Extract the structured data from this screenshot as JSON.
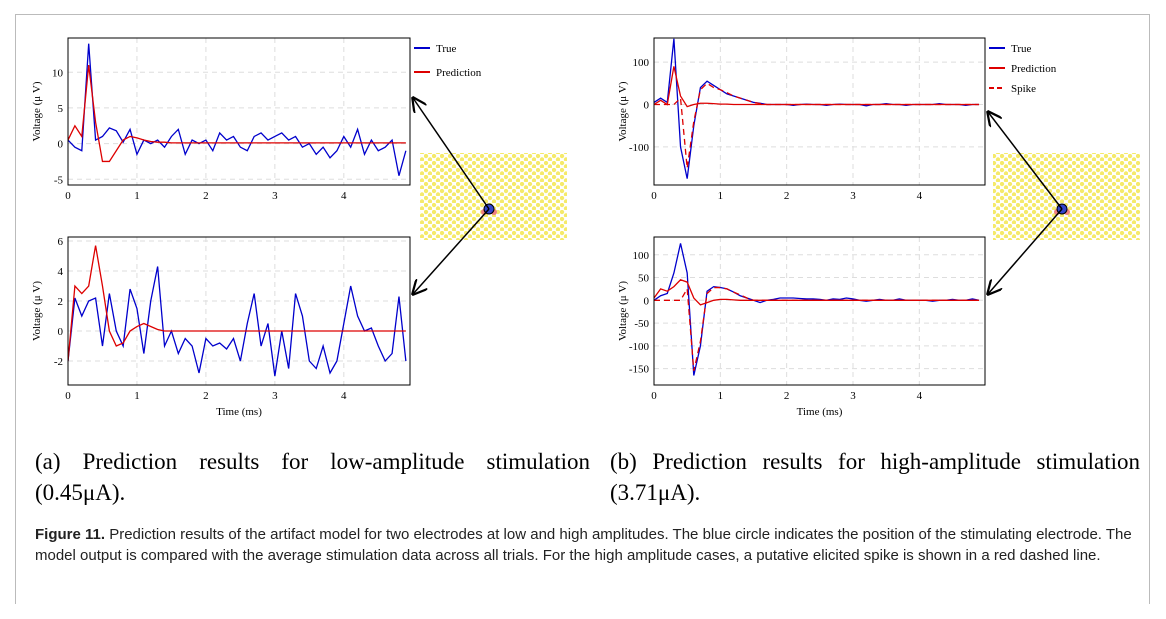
{
  "chart_data": [
    {
      "type": "line",
      "y_label": "Voltage (μ V)",
      "xlim": [
        0,
        4.96
      ],
      "ylim": [
        -5.8,
        14.8
      ],
      "xticks": [
        0,
        1,
        2,
        3,
        4
      ],
      "yticks": [
        -5,
        0,
        5,
        10
      ],
      "grid": true,
      "legend": "right",
      "x": [
        0,
        0.1,
        0.2,
        0.3,
        0.4,
        0.5,
        0.6,
        0.7,
        0.8,
        0.9,
        1,
        1.1,
        1.2,
        1.3,
        1.4,
        1.5,
        1.6,
        1.7,
        1.8,
        1.9,
        2,
        2.1,
        2.2,
        2.3,
        2.4,
        2.5,
        2.6,
        2.7,
        2.8,
        2.9,
        3,
        3.1,
        3.2,
        3.3,
        3.4,
        3.5,
        3.6,
        3.7,
        3.8,
        3.9,
        4,
        4.1,
        4.2,
        4.3,
        4.4,
        4.5,
        4.6,
        4.7,
        4.8,
        4.9
      ],
      "series": [
        {
          "name": "True",
          "color": "#0000cc",
          "values": [
            0.5,
            -0.5,
            -1,
            14,
            0.5,
            1,
            2.2,
            1.8,
            0.2,
            2,
            -1.5,
            0.5,
            0,
            0.5,
            -0.5,
            1,
            2,
            -1.5,
            0.5,
            0,
            0.5,
            -1,
            1.5,
            0.5,
            1,
            -0.5,
            -1,
            1,
            1.5,
            0.5,
            1,
            1.5,
            0.5,
            1,
            -0.5,
            0,
            -1.5,
            -0.5,
            -2,
            -1,
            1,
            -0.5,
            2,
            -1.5,
            0.5,
            -1,
            -0.5,
            0.5,
            -4.5,
            -1
          ]
        },
        {
          "name": "Prediction",
          "color": "#dd0000",
          "values": [
            0.5,
            2.5,
            1,
            11,
            3,
            -2.5,
            -2.5,
            -1,
            0.5,
            1,
            0.8,
            0.5,
            0.3,
            0.2,
            0.2,
            0.1,
            0.1,
            0.1,
            0.1,
            0.1,
            0.1,
            0.1,
            0.1,
            0.1,
            0.1,
            0.1,
            0.1,
            0.1,
            0.1,
            0.1,
            0.1,
            0.1,
            0.1,
            0.1,
            0.1,
            0.1,
            0.1,
            0.1,
            0.1,
            0.1,
            0.1,
            0.1,
            0.1,
            0.1,
            0.1,
            0.1,
            0.1,
            0.1,
            0.1,
            0.1
          ]
        }
      ]
    },
    {
      "type": "line",
      "x_label": "Time (ms)",
      "y_label": "Voltage (μ V)",
      "xlim": [
        0,
        4.96
      ],
      "ylim": [
        -3.6,
        6.27
      ],
      "xticks": [
        0,
        1,
        2,
        3,
        4
      ],
      "yticks": [
        -2,
        0,
        2,
        4,
        6
      ],
      "grid": true,
      "x": [
        0,
        0.1,
        0.2,
        0.3,
        0.4,
        0.5,
        0.6,
        0.7,
        0.8,
        0.9,
        1,
        1.1,
        1.2,
        1.3,
        1.4,
        1.5,
        1.6,
        1.7,
        1.8,
        1.9,
        2,
        2.1,
        2.2,
        2.3,
        2.4,
        2.5,
        2.6,
        2.7,
        2.8,
        2.9,
        3,
        3.1,
        3.2,
        3.3,
        3.4,
        3.5,
        3.6,
        3.7,
        3.8,
        3.9,
        4,
        4.1,
        4.2,
        4.3,
        4.4,
        4.5,
        4.6,
        4.7,
        4.8,
        4.9
      ],
      "series": [
        {
          "color": "#0000cc",
          "values": [
            -2,
            2.2,
            1,
            2,
            2.2,
            -1,
            2.5,
            0,
            -1,
            2.8,
            1.5,
            -1.5,
            2,
            4.3,
            -1,
            0,
            -1.5,
            -0.5,
            -1,
            -2.8,
            -0.5,
            -1,
            -0.8,
            -1.2,
            -0.5,
            -2,
            0.5,
            2.5,
            -1,
            0.5,
            -3,
            0,
            -2.5,
            2.5,
            1,
            -2,
            -2.5,
            -1,
            -2.8,
            -2,
            0.5,
            3,
            1,
            0,
            0.2,
            -1,
            -2,
            -1.5,
            2.3,
            -2
          ]
        },
        {
          "color": "#dd0000",
          "values": [
            -2,
            3,
            2.5,
            3,
            5.7,
            3,
            0,
            -1,
            -0.8,
            0,
            0.3,
            0.5,
            0.3,
            0.1,
            0,
            0,
            0,
            0,
            0,
            0,
            0,
            0,
            0,
            0,
            0,
            0,
            0,
            0,
            0,
            0,
            0,
            0,
            0,
            0,
            0,
            0,
            0,
            0,
            0,
            0,
            0,
            0,
            0,
            0,
            0,
            0,
            0,
            0,
            0,
            0
          ]
        }
      ]
    },
    {
      "type": "line",
      "y_label": "Voltage (μ V)",
      "xlim": [
        0,
        4.99
      ],
      "ylim": [
        -190,
        157
      ],
      "xticks": [
        0,
        1,
        2,
        3,
        4
      ],
      "yticks": [
        -100,
        0,
        100
      ],
      "grid": true,
      "legend": "right",
      "x": [
        0,
        0.1,
        0.2,
        0.3,
        0.4,
        0.5,
        0.6,
        0.7,
        0.8,
        0.9,
        1,
        1.1,
        1.2,
        1.3,
        1.4,
        1.5,
        1.6,
        1.7,
        1.8,
        1.9,
        2,
        2.1,
        2.2,
        2.3,
        2.4,
        2.5,
        2.6,
        2.7,
        2.8,
        2.9,
        3,
        3.1,
        3.2,
        3.3,
        3.4,
        3.5,
        3.6,
        3.7,
        3.8,
        3.9,
        4,
        4.1,
        4.2,
        4.3,
        4.4,
        4.5,
        4.6,
        4.7,
        4.8,
        4.9
      ],
      "series": [
        {
          "name": "True",
          "color": "#0000cc",
          "values": [
            5,
            15,
            5,
            155,
            -100,
            -175,
            -50,
            40,
            55,
            45,
            35,
            25,
            20,
            15,
            10,
            5,
            3,
            0,
            0,
            0,
            0,
            -2,
            0,
            1,
            0,
            0,
            -2,
            0,
            1,
            0,
            0,
            0,
            -3,
            0,
            0,
            2,
            0,
            0,
            -2,
            0,
            0,
            0,
            0,
            2,
            0,
            0,
            0,
            -2,
            0,
            0
          ]
        },
        {
          "name": "Prediction",
          "color": "#dd0000",
          "values": [
            0,
            10,
            0,
            90,
            20,
            -5,
            0,
            3,
            3,
            2,
            1,
            1,
            0,
            0,
            0,
            0,
            0,
            0,
            0,
            0,
            0,
            0,
            0,
            0,
            0,
            0,
            0,
            0,
            0,
            0,
            0,
            0,
            0,
            0,
            0,
            0,
            0,
            0,
            0,
            0,
            0,
            0,
            0,
            0,
            0,
            0,
            0,
            0,
            0,
            0
          ]
        },
        {
          "name": "Spike",
          "color": "#dd0000",
          "dash": true,
          "values": [
            0,
            0,
            0,
            0,
            15,
            -150,
            -40,
            35,
            50,
            40,
            35,
            28,
            20,
            15,
            10,
            5,
            2,
            0,
            0,
            0,
            0,
            0,
            0,
            0,
            0,
            0,
            0,
            0,
            0,
            0,
            0,
            0,
            0,
            0,
            0,
            0,
            0,
            0,
            0,
            0,
            0,
            0,
            0,
            0,
            0,
            0,
            0,
            0,
            0,
            0
          ]
        }
      ]
    },
    {
      "type": "line",
      "x_label": "Time (ms)",
      "y_label": "Voltage (μ V)",
      "xlim": [
        0,
        4.99
      ],
      "ylim": [
        -186,
        139
      ],
      "xticks": [
        0,
        1,
        2,
        3,
        4
      ],
      "yticks": [
        -150,
        -100,
        -50,
        0,
        50,
        100
      ],
      "grid": true,
      "x": [
        0,
        0.1,
        0.2,
        0.3,
        0.4,
        0.5,
        0.6,
        0.7,
        0.8,
        0.9,
        1,
        1.1,
        1.2,
        1.3,
        1.4,
        1.5,
        1.6,
        1.7,
        1.8,
        1.9,
        2,
        2.1,
        2.2,
        2.3,
        2.4,
        2.5,
        2.6,
        2.7,
        2.8,
        2.9,
        3,
        3.1,
        3.2,
        3.3,
        3.4,
        3.5,
        3.6,
        3.7,
        3.8,
        3.9,
        4,
        4.1,
        4.2,
        4.3,
        4.4,
        4.5,
        4.6,
        4.7,
        4.8,
        4.9
      ],
      "series": [
        {
          "color": "#0000cc",
          "values": [
            0,
            10,
            15,
            60,
            125,
            60,
            -165,
            -100,
            20,
            30,
            28,
            25,
            18,
            10,
            5,
            0,
            -5,
            0,
            2,
            5,
            5,
            5,
            4,
            3,
            3,
            2,
            0,
            3,
            2,
            5,
            3,
            0,
            -2,
            0,
            2,
            0,
            0,
            3,
            0,
            0,
            0,
            0,
            -2,
            0,
            0,
            2,
            0,
            0,
            3,
            0
          ]
        },
        {
          "color": "#dd0000",
          "values": [
            5,
            25,
            20,
            30,
            45,
            40,
            5,
            -10,
            -5,
            0,
            2,
            2,
            1,
            0,
            0,
            0,
            0,
            0,
            0,
            0,
            0,
            0,
            0,
            0,
            0,
            0,
            0,
            0,
            0,
            0,
            0,
            0,
            0,
            0,
            0,
            0,
            0,
            0,
            0,
            0,
            0,
            0,
            0,
            0,
            0,
            0,
            0,
            0,
            0,
            0
          ]
        },
        {
          "color": "#dd0000",
          "dash": true,
          "values": [
            0,
            0,
            0,
            0,
            0,
            25,
            -155,
            -90,
            15,
            28,
            28,
            25,
            18,
            12,
            5,
            0,
            0,
            0,
            0,
            0,
            0,
            0,
            0,
            0,
            0,
            0,
            0,
            0,
            0,
            0,
            0,
            0,
            0,
            0,
            0,
            0,
            0,
            0,
            0,
            0,
            0,
            0,
            0,
            0,
            0,
            0,
            0,
            0,
            0,
            0
          ]
        }
      ]
    }
  ],
  "subcaptions": [
    "(a) Prediction results for low-amplitude stimulation (0.45μA).",
    "(b) Prediction results for high-amplitude stimulation (3.71μA)."
  ],
  "figure": {
    "label": "Figure 11.",
    "text": "Prediction results of the artifact model for two electrodes at low and high amplitudes. The blue circle indicates the position of the stimulating electrode. The model output is compared with the average stimulation data across all trials. For the high amplitude cases, a putative elicited spike is shown in a red dashed line."
  }
}
